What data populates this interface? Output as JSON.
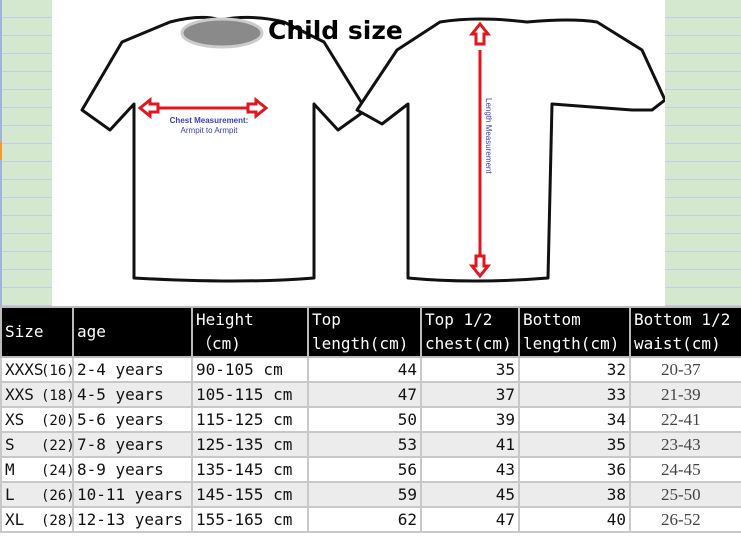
{
  "title": "Child size",
  "diagram": {
    "chest_label_1": "Chest Measurement:",
    "chest_label_2": "Armpit to Armpit",
    "length_label": "Length Measurement"
  },
  "table": {
    "headers": [
      {
        "line1": "Size",
        "line2": ""
      },
      {
        "line1": "age",
        "line2": ""
      },
      {
        "line1": "Height",
        "line2": "（cm)"
      },
      {
        "line1": "Top",
        "line2": "length(cm)"
      },
      {
        "line1": "Top 1/2",
        "line2": "chest(cm)"
      },
      {
        "line1": "Bottom",
        "line2": "length(cm)"
      },
      {
        "line1": "Bottom 1/2",
        "line2": "waist(cm)"
      }
    ],
    "rows": [
      {
        "size": "XXXS",
        "eu": "(16)",
        "age": "2-4 years",
        "height": "90-105 cm",
        "top_length": "44",
        "chest": "35",
        "bottom_length": "32",
        "waist": "20-37"
      },
      {
        "size": "XXS",
        "eu": "(18)",
        "age": "4-5 years",
        "height": "105-115 cm",
        "top_length": "47",
        "chest": "37",
        "bottom_length": "33",
        "waist": "21-39"
      },
      {
        "size": "XS",
        "eu": "(20)",
        "age": "5-6 years",
        "height": "115-125 cm",
        "top_length": "50",
        "chest": "39",
        "bottom_length": "34",
        "waist": "22-41"
      },
      {
        "size": "S",
        "eu": "(22)",
        "age": "7-8 years",
        "height": "125-135 cm",
        "top_length": "53",
        "chest": "41",
        "bottom_length": "35",
        "waist": "23-43"
      },
      {
        "size": "M",
        "eu": "(24)",
        "age": "8-9 years",
        "height": "135-145 cm",
        "top_length": "56",
        "chest": "43",
        "bottom_length": "36",
        "waist": "24-45"
      },
      {
        "size": "L",
        "eu": "(26)",
        "age": "10-11 years",
        "height": "145-155 cm",
        "top_length": "59",
        "chest": "45",
        "bottom_length": "38",
        "waist": "25-50"
      },
      {
        "size": "XL",
        "eu": "(28)",
        "age": "12-13 years",
        "height": "155-165 cm",
        "top_length": "62",
        "chest": "47",
        "bottom_length": "40",
        "waist": "26-52"
      }
    ]
  },
  "colors": {
    "header_bg": "#000000",
    "arrow": "#e0151d",
    "label": "#3a3fb0",
    "sheet_bg": "#d3e8cf"
  }
}
